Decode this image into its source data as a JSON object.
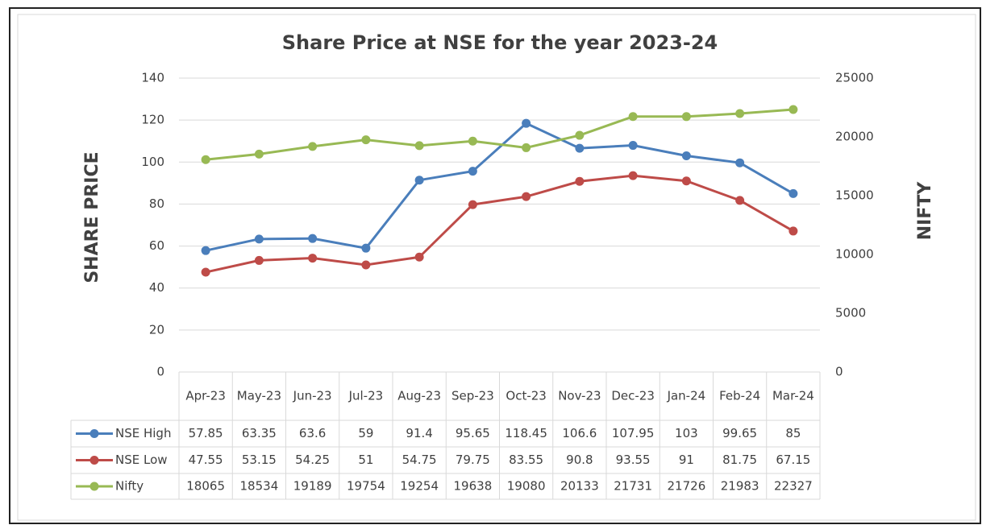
{
  "chart_data": {
    "type": "line",
    "title": "Share Price at NSE for the year 2023-24",
    "y_label": "SHARE PRICE",
    "y2_label": "NIFTY",
    "categories": [
      "Apr-23",
      "May-23",
      "Jun-23",
      "Jul-23",
      "Aug-23",
      "Sep-23",
      "Oct-23",
      "Nov-23",
      "Dec-23",
      "Jan-24",
      "Feb-24",
      "Mar-24"
    ],
    "series": [
      {
        "name": "NSE High",
        "color": "#4a7ebb",
        "values": [
          57.85,
          63.35,
          63.6,
          59,
          91.4,
          95.65,
          118.45,
          106.6,
          107.95,
          103,
          99.65,
          85
        ]
      },
      {
        "name": "NSE Low",
        "color": "#be4b48",
        "values": [
          47.55,
          53.15,
          54.25,
          51,
          54.75,
          79.75,
          83.55,
          90.8,
          93.55,
          91,
          81.75,
          67.15
        ]
      },
      {
        "name": "Nifty",
        "color": "#98b954",
        "axis": "y2",
        "values": [
          18065,
          18534,
          19189,
          19754,
          19254,
          19638,
          19080,
          20133,
          21731,
          21726,
          21983,
          22327
        ]
      }
    ],
    "ylim": [
      0,
      140
    ],
    "yticks": [
      0,
      20,
      40,
      60,
      80,
      100,
      120,
      140
    ],
    "y2lim": [
      0,
      25000
    ],
    "y2ticks": [
      0,
      5000,
      10000,
      15000,
      20000,
      25000
    ],
    "grid": true
  }
}
